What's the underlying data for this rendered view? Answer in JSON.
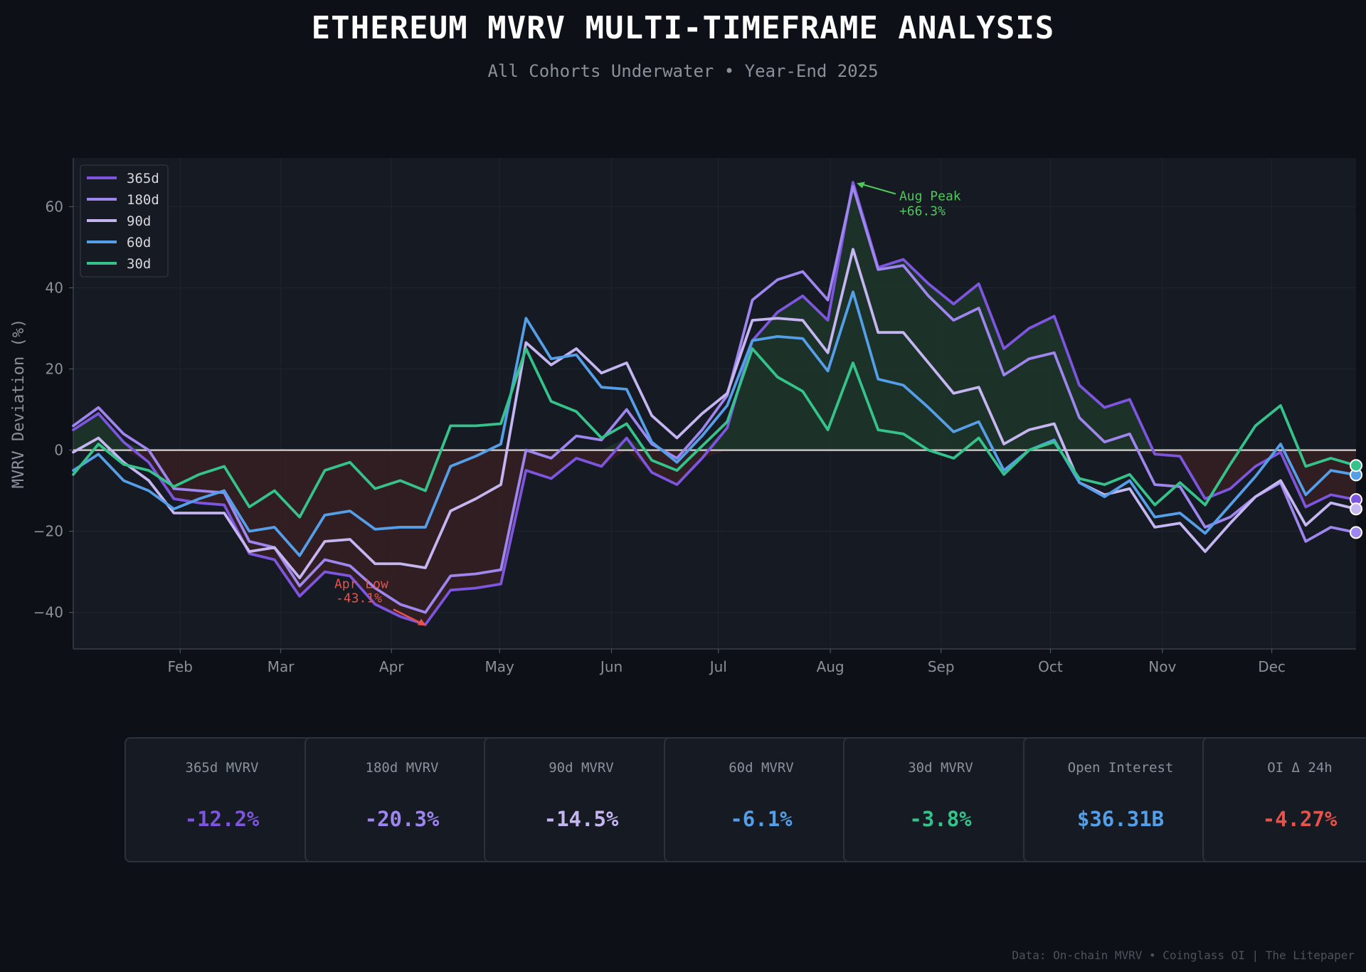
{
  "header": {
    "title": "ETHEREUM MVRV MULTI-TIMEFRAME ANALYSIS",
    "subtitle": "All Cohorts Underwater • Year-End 2025"
  },
  "chart_data": {
    "type": "line",
    "title": "ETHEREUM MVRV MULTI-TIMEFRAME ANALYSIS",
    "subtitle": "All Cohorts Underwater • Year-End 2025",
    "xlabel": "",
    "ylabel": "MVRV Deviation (%)",
    "ylim": [
      -49,
      72
    ],
    "yticks": [
      60,
      40,
      20,
      0,
      -20,
      -40
    ],
    "ytick_labels": [
      "60",
      "40",
      "20",
      "0",
      "−20",
      "−40"
    ],
    "xtick_labels": [
      "Feb",
      "Mar",
      "Apr",
      "May",
      "Jun",
      "Jul",
      "Aug",
      "Sep",
      "Oct",
      "Nov",
      "Dec"
    ],
    "xtick_positions": [
      4.25,
      8.25,
      12.65,
      16.95,
      21.4,
      25.65,
      30.1,
      34.5,
      38.85,
      43.3,
      47.65
    ],
    "grid": true,
    "legend_position": "top-left",
    "zero_line": true,
    "x": [
      0,
      1,
      2,
      3,
      4,
      5,
      6,
      7,
      8,
      9,
      10,
      11,
      12,
      13,
      14,
      15,
      16,
      17,
      18,
      19,
      20,
      21,
      22,
      23,
      24,
      25,
      26,
      27,
      28,
      29,
      30,
      31,
      32,
      33,
      34,
      35,
      36,
      37,
      38,
      39,
      40,
      41,
      42,
      43,
      44,
      45,
      46,
      47,
      48,
      49,
      50,
      51
    ],
    "series": [
      {
        "name": "365d",
        "color": "#7d55de",
        "end_value": -12.2,
        "values": [
          5,
          9,
          2,
          -3,
          -12,
          -13,
          -13.5,
          -25.5,
          -27,
          -36,
          -30,
          -31,
          -38,
          -41,
          -43,
          -34.5,
          -34,
          -33,
          -5,
          -7,
          -2,
          -4,
          3,
          -5.5,
          -8.5,
          -2,
          5.5,
          27,
          34,
          38,
          32,
          66,
          45,
          47,
          41,
          36,
          41,
          25,
          30,
          33,
          16,
          10.5,
          12.5,
          -1,
          -1.5,
          -12,
          -9.5,
          -4,
          -0.5,
          -14,
          -11,
          -12.2
        ]
      },
      {
        "name": "180d",
        "color": "#9f85ee",
        "end_value": -20.3,
        "values": [
          6,
          10.5,
          4,
          0,
          -9.5,
          -10,
          -10.5,
          -22.5,
          -24,
          -33.5,
          -27,
          -28.5,
          -34,
          -38,
          -40,
          -31,
          -30.5,
          -29.5,
          0,
          -2,
          3.5,
          2.5,
          10,
          1.5,
          -2,
          5,
          13.5,
          37,
          42,
          44,
          37,
          65,
          44.5,
          45.5,
          38,
          32,
          35,
          18.5,
          22.5,
          24,
          8,
          2,
          4,
          -8.5,
          -9,
          -19,
          -16.5,
          -11.5,
          -8,
          -22.5,
          -19,
          -20.3
        ]
      },
      {
        "name": "90d",
        "color": "#c5b6f2",
        "end_value": -14.5,
        "values": [
          -0.5,
          3,
          -3,
          -7.5,
          -15.5,
          -15.5,
          -15.5,
          -25,
          -24,
          -31.5,
          -22.5,
          -22,
          -28,
          -28,
          -29,
          -15,
          -12,
          -8.5,
          26.5,
          21,
          25,
          19,
          21.5,
          8.5,
          3,
          9,
          14,
          32,
          32.5,
          32,
          24,
          49.5,
          29,
          29,
          21.5,
          14,
          15.5,
          1.5,
          5,
          6.5,
          -8,
          -11,
          -9.5,
          -19,
          -18,
          -25,
          -18,
          -11.5,
          -7.5,
          -18.5,
          -13,
          -14.5
        ]
      },
      {
        "name": "60d",
        "color": "#559ee8",
        "end_value": -6.1,
        "values": [
          -5,
          -1,
          -7.5,
          -10,
          -14.5,
          -12,
          -10,
          -20,
          -19,
          -26,
          -16,
          -15,
          -19.5,
          -19,
          -19,
          -4,
          -1.5,
          1.5,
          32.5,
          22.5,
          23.5,
          15.5,
          15,
          2,
          -3,
          3.5,
          11,
          27,
          28,
          27.5,
          19.5,
          39,
          17.5,
          16,
          10.5,
          4.5,
          7,
          -5,
          0,
          2.5,
          -8,
          -11.5,
          -7.5,
          -16.5,
          -15.5,
          -20.5,
          -13.5,
          -6.5,
          1.5,
          -11,
          -5,
          -6.1
        ]
      },
      {
        "name": "30d",
        "color": "#35c28b",
        "end_value": -3.8,
        "values": [
          -6,
          1.5,
          -3.5,
          -5,
          -9,
          -6,
          -4,
          -14,
          -10,
          -16.5,
          -5,
          -3,
          -9.5,
          -7.5,
          -10,
          6,
          6,
          6.5,
          25,
          12,
          9.5,
          3,
          6.5,
          -2.5,
          -5,
          1,
          7,
          25,
          18,
          14.5,
          5,
          21.5,
          5,
          4,
          0,
          -2,
          3,
          -6,
          0,
          2,
          -7,
          -8.5,
          -6,
          -13.5,
          -8,
          -13.5,
          -3.5,
          6,
          11,
          -4,
          -2,
          -3.8
        ]
      }
    ],
    "annotations": [
      {
        "text": "Aug Peak",
        "subtext": "+66.3%",
        "x": 31,
        "y": 66.3,
        "color": "#4fc85a"
      },
      {
        "text": "Apr Low",
        "subtext": "-43.1%",
        "x": 14,
        "y": -43.1,
        "color": "#e5534b"
      }
    ]
  },
  "cards": [
    {
      "label": "365d MVRV",
      "value": "-12.2%",
      "color": "#7d55de"
    },
    {
      "label": "180d MVRV",
      "value": "-20.3%",
      "color": "#9f85ee"
    },
    {
      "label": "90d MVRV",
      "value": "-14.5%",
      "color": "#c5b6f2"
    },
    {
      "label": "60d MVRV",
      "value": "-6.1%",
      "color": "#559ee8"
    },
    {
      "label": "30d MVRV",
      "value": "-3.8%",
      "color": "#35c28b"
    },
    {
      "label": "Open Interest",
      "value": "$36.31B",
      "color": "#559ee8"
    },
    {
      "label": "OI Δ 24h",
      "value": "-4.27%",
      "color": "#e5534b"
    }
  ],
  "footer": {
    "source": "Data: On-chain MVRV • Coinglass OI | The Litepaper"
  }
}
